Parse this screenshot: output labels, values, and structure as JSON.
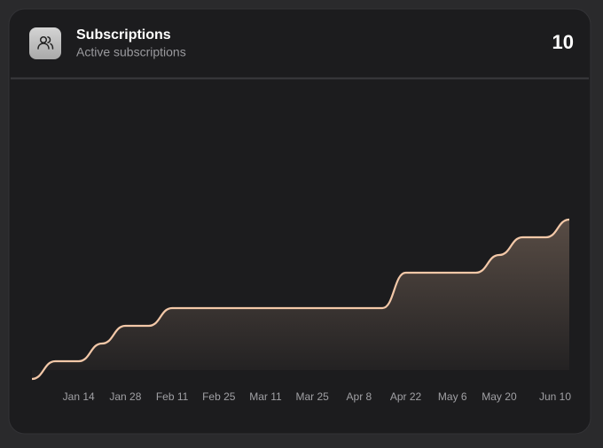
{
  "card": {
    "title": "Subscriptions",
    "subtitle": "Active subscriptions",
    "total": 10
  },
  "chart_data": {
    "type": "area",
    "color": "#f3c8a8",
    "categories": [
      null,
      null,
      "Jan 14",
      null,
      "Jan 28",
      null,
      "Feb 11",
      null,
      "Feb 25",
      null,
      "Mar 11",
      null,
      "Mar 25",
      null,
      "Apr 8",
      null,
      "Apr 22",
      null,
      "May 6",
      null,
      "May 20",
      null,
      null,
      "Jun 10"
    ],
    "values": [
      1,
      2,
      2,
      3,
      4,
      4,
      5,
      5,
      5,
      5,
      5,
      5,
      5,
      5,
      5,
      5,
      7,
      7,
      7,
      7,
      8,
      9,
      9,
      10
    ]
  }
}
